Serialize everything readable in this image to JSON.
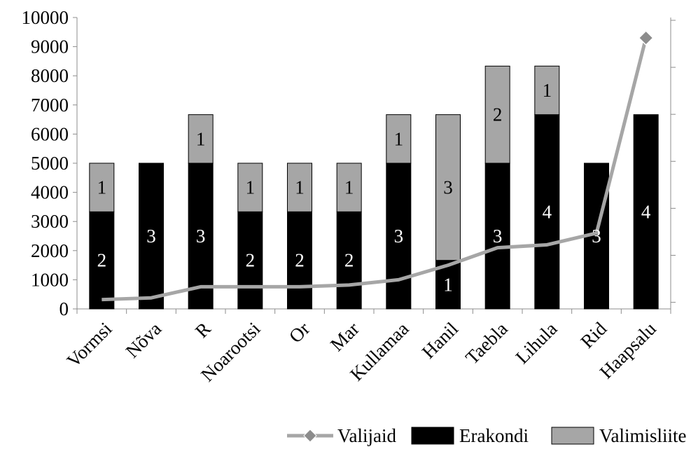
{
  "chart_data": {
    "type": "bar",
    "stacked": true,
    "categories": [
      "Vormsi",
      "Nõva",
      "R",
      "Noarootsi",
      "Or",
      "Mar",
      "Kullamaa",
      "Hanil",
      "Taebla",
      "Lihula",
      "Rid",
      "Haapsalu"
    ],
    "ylim": [
      0,
      10000
    ],
    "yticks": [
      0,
      1000,
      2000,
      3000,
      4000,
      5000,
      6000,
      7000,
      8000,
      9000,
      10000
    ],
    "grid": false,
    "legend_position": "bottom-right",
    "series": [
      {
        "name": "Erakondi",
        "kind": "bar",
        "color": "#000000",
        "values": [
          3333,
          5000,
          5000,
          3333,
          3333,
          3333,
          5000,
          1667,
          5000,
          6667,
          5000,
          6667
        ],
        "labels": [
          "2",
          "3",
          "3",
          "2",
          "2",
          "2",
          "3",
          "1",
          "3",
          "4",
          "3",
          "4"
        ]
      },
      {
        "name": "Valimisliite",
        "kind": "bar",
        "color": "#a6a6a6",
        "values": [
          1667,
          0,
          1667,
          1667,
          1667,
          1667,
          1667,
          5000,
          3333,
          1667,
          0,
          0
        ],
        "labels": [
          "1",
          "",
          "1",
          "1",
          "1",
          "1",
          "1",
          "3",
          "2",
          "1",
          "",
          ""
        ]
      },
      {
        "name": "Valijaid",
        "kind": "line",
        "color": "#a6a6a6",
        "marker_color": "#8c8c8c",
        "values": [
          320,
          380,
          760,
          760,
          760,
          820,
          1000,
          1500,
          2100,
          2200,
          2600,
          9300
        ]
      }
    ]
  }
}
